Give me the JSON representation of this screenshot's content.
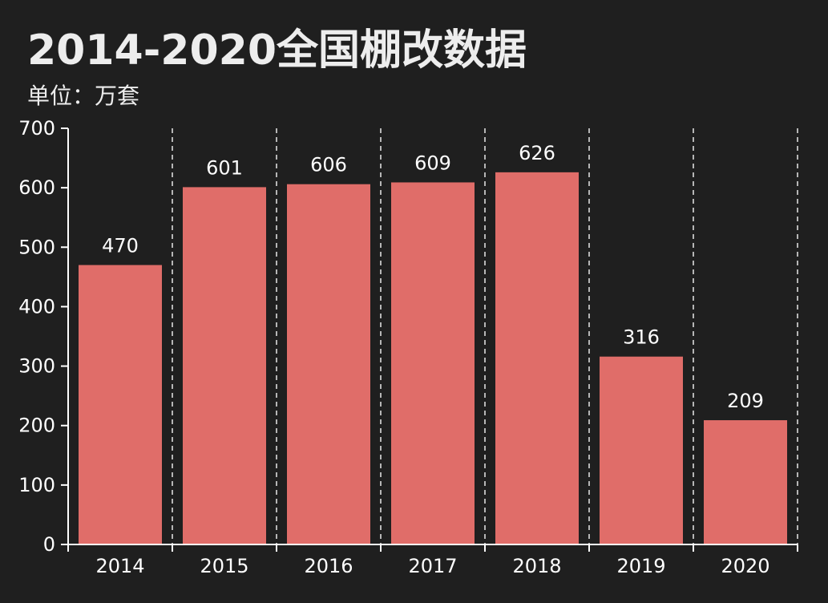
{
  "chart_data": {
    "type": "bar",
    "title": "2014-2020全国棚改数据",
    "subtitle": "单位：万套",
    "categories": [
      "2014",
      "2015",
      "2016",
      "2017",
      "2018",
      "2019",
      "2020"
    ],
    "series": [
      {
        "values": [
          470,
          601,
          606,
          609,
          626,
          316,
          209
        ]
      }
    ],
    "data_labels": [
      "470",
      "601",
      "606",
      "609",
      "626",
      "316",
      "209"
    ],
    "ylim": [
      0,
      700
    ],
    "y_ticks": [
      0,
      100,
      200,
      300,
      400,
      500,
      600,
      700
    ],
    "y_tick_labels": [
      "0",
      "100",
      "200",
      "300",
      "400",
      "500",
      "600",
      "700"
    ],
    "xlabel": "",
    "ylabel": "",
    "grid": "vertical dashed lines between categories",
    "legend": "none",
    "colors": {
      "background": "#1f1f1f",
      "bar": "#e06d69",
      "text": "#ffffff",
      "title": "#ededed",
      "axis": "#ffffff",
      "grid": "#e8e8e8"
    }
  }
}
